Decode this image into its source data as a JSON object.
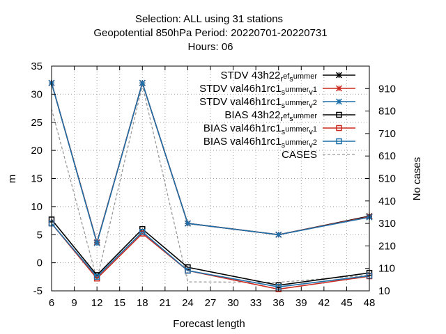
{
  "chart_data": {
    "type": "line",
    "title_lines": [
      "Selection: ALL using    31 stations",
      "Geopotential 850hPa   Period: 20220701-20220731",
      "Hours:  06"
    ],
    "xlabel": "Forecast length",
    "ylabel": "m",
    "y2label": "No cases",
    "x": [
      6,
      12,
      18,
      24,
      36,
      48
    ],
    "xlim": [
      6,
      48
    ],
    "ylim": [
      -5,
      35
    ],
    "y2lim": [
      10,
      1010
    ],
    "x_ticks": [
      "6",
      "9",
      "12",
      "15",
      "18",
      "21",
      "24",
      "27",
      "30",
      "33",
      "36",
      "39",
      "42",
      "45",
      "48"
    ],
    "y_ticks": [
      "-5",
      "0",
      "5",
      "10",
      "15",
      "20",
      "25",
      "30",
      "35"
    ],
    "y2_ticks": [
      "10",
      "110",
      "210",
      "310",
      "410",
      "510",
      "610",
      "710",
      "810",
      "910"
    ],
    "grid": true,
    "legend_position": "top-right",
    "series": [
      {
        "name": "STDV 43h22_ref_summer",
        "legend_parts": [
          "STDV 43h22",
          "r",
          "ef",
          "s",
          "ummer"
        ],
        "color": "#000000",
        "marker": "star",
        "dash": "solid",
        "values": [
          32.0,
          3.6,
          32.0,
          7.0,
          5.0,
          8.3
        ]
      },
      {
        "name": "STDV val46h1rc1_summer_v1",
        "legend_parts": [
          "STDV val46h1rc1",
          "s",
          "ummer",
          "v",
          "1"
        ],
        "color": "#cc2a1f",
        "marker": "star",
        "dash": "solid",
        "values": [
          32.0,
          3.6,
          32.0,
          7.0,
          5.0,
          8.2
        ]
      },
      {
        "name": "STDV val46h1rc1_summer_v2",
        "legend_parts": [
          "STDV val46h1rc1",
          "s",
          "ummer",
          "v",
          "2"
        ],
        "color": "#1f6fa8",
        "marker": "star",
        "dash": "solid",
        "values": [
          32.0,
          3.5,
          32.0,
          7.0,
          5.0,
          8.1
        ]
      },
      {
        "name": "BIAS 43h22_ref_summer",
        "legend_parts": [
          "BIAS 43h22",
          "r",
          "ef",
          "s",
          "ummer"
        ],
        "color": "#000000",
        "marker": "square",
        "dash": "solid",
        "values": [
          7.7,
          -2.2,
          6.0,
          -0.8,
          -4.0,
          -1.8
        ]
      },
      {
        "name": "BIAS val46h1rc1_summer_v1",
        "legend_parts": [
          "BIAS val46h1rc1",
          "s",
          "ummer",
          "v",
          "1"
        ],
        "color": "#cc2a1f",
        "marker": "square",
        "dash": "solid",
        "values": [
          7.0,
          -2.8,
          5.2,
          -1.4,
          -4.7,
          -2.4
        ]
      },
      {
        "name": "BIAS val46h1rc1_summer_v2",
        "legend_parts": [
          "BIAS val46h1rc1",
          "s",
          "ummer",
          "v",
          "2"
        ],
        "color": "#1f6fa8",
        "marker": "square",
        "dash": "solid",
        "values": [
          7.0,
          -2.5,
          5.5,
          -1.4,
          -4.3,
          -2.3
        ]
      },
      {
        "name": "CASES",
        "legend_parts": [
          "CASES"
        ],
        "color": "#999999",
        "marker": "none",
        "dash": "dashed",
        "axis": "y2",
        "values": [
          820,
          60,
          925,
          50,
          48,
          80
        ]
      }
    ]
  }
}
